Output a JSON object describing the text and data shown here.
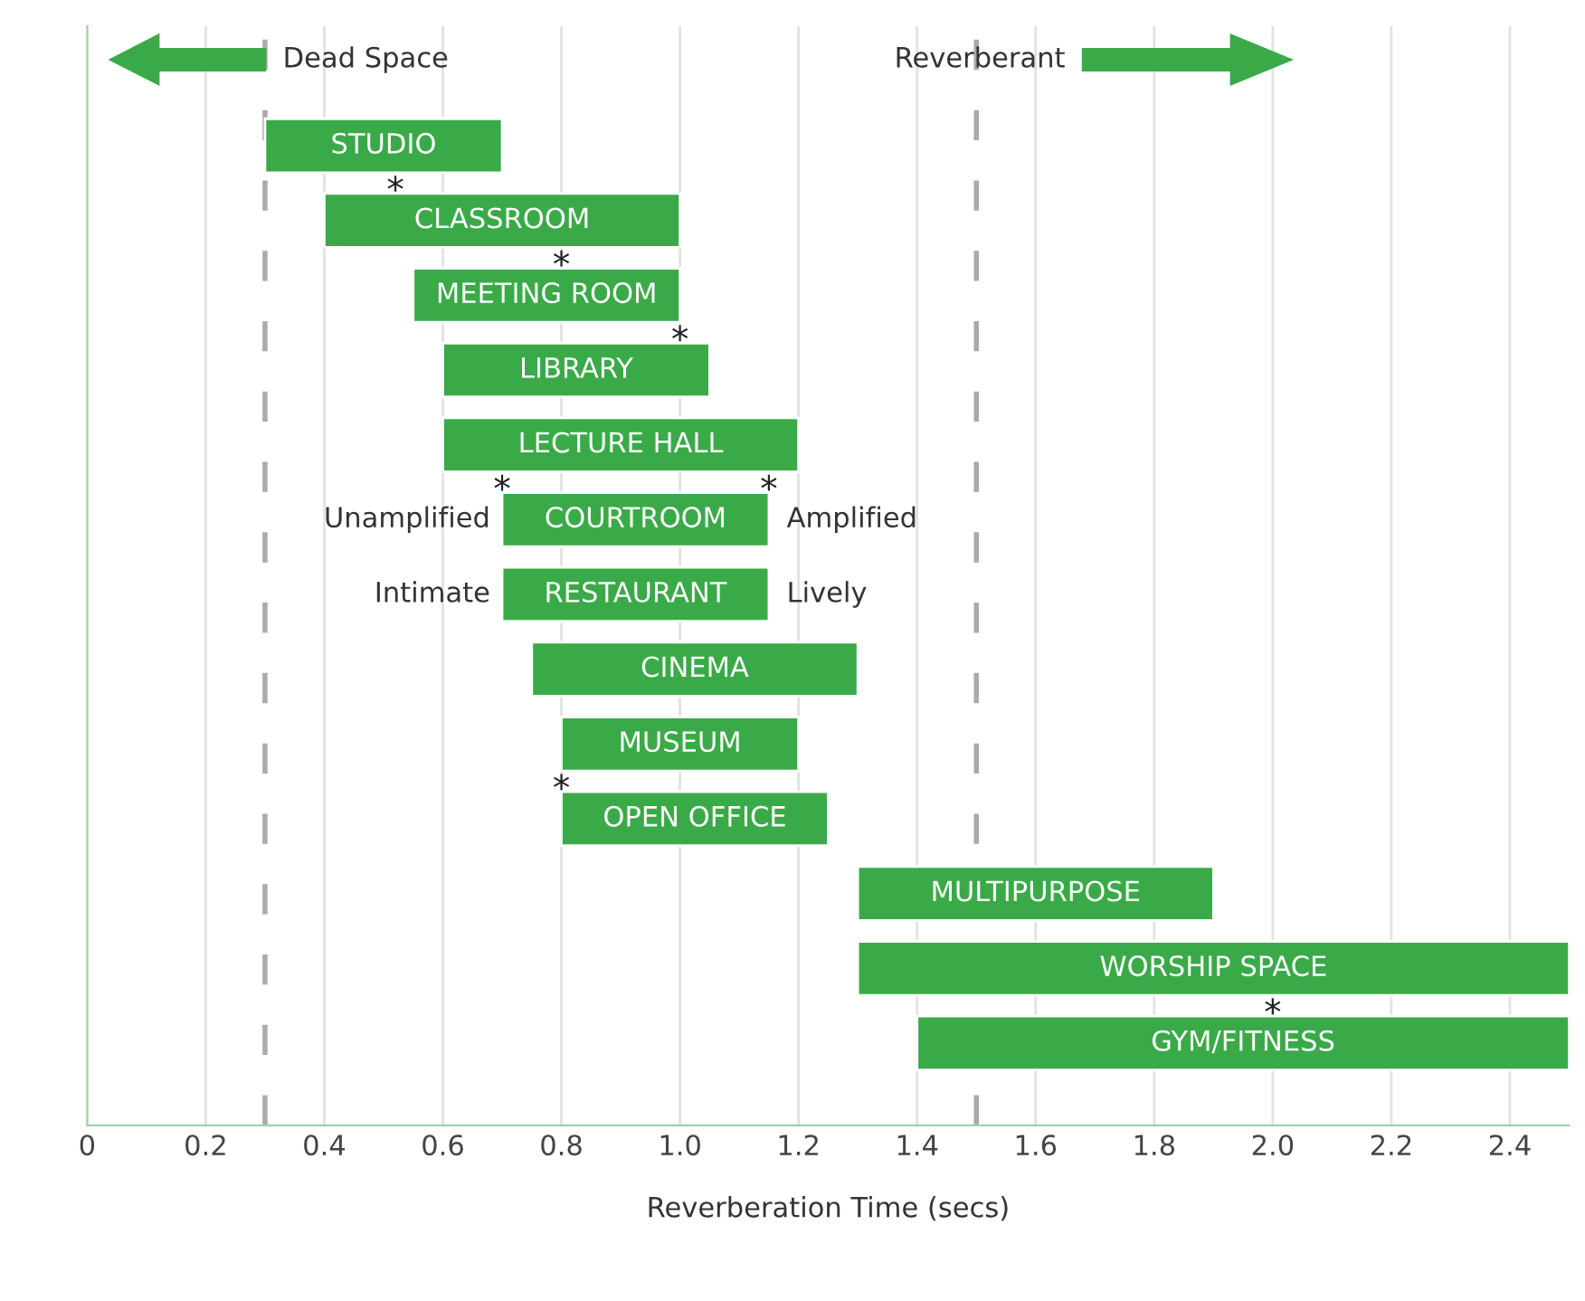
{
  "chart_data": {
    "type": "bar",
    "orientation": "horizontal",
    "xlabel": "Reverberation Time (secs)",
    "categories": [
      "STUDIO",
      "CLASSROOM",
      "MEETING ROOM",
      "LIBRARY",
      "LECTURE HALL",
      "COURTROOM",
      "RESTAURANT",
      "CINEMA",
      "MUSEUM",
      "OPEN OFFICE",
      "MULTIPURPOSE",
      "WORSHIP SPACE",
      "GYM/FITNESS"
    ],
    "base": [
      0.3,
      0.4,
      0.55,
      0.6,
      0.6,
      0.7,
      0.7,
      0.75,
      0.8,
      0.8,
      1.3,
      1.3,
      1.4
    ],
    "values": [
      0.4,
      0.6,
      0.45,
      0.45,
      0.6,
      0.45,
      0.45,
      0.55,
      0.4,
      0.45,
      0.6,
      1.2,
      1.1
    ],
    "color": "#3aaa48",
    "xlim": [
      0,
      2.5
    ],
    "xticks": [
      0,
      0.2,
      0.4,
      0.6,
      0.8,
      {
        "value": 1,
        "label": "1.0"
      },
      1.2,
      1.4,
      1.6,
      1.8,
      {
        "value": 2,
        "label": "2.0"
      },
      2.2,
      2.4
    ],
    "grid": "x",
    "tick_labels": "x",
    "ref_lines": [
      {
        "axis": "x",
        "value": 0.3,
        "color": "#aaaaaa",
        "line_style": "dashed"
      },
      {
        "axis": "x",
        "value": 1.5,
        "color": "#aaaaaa",
        "line_style": "dashed"
      }
    ],
    "annotations": [
      "Dead Space",
      "Reverberant",
      {
        "text": "Unamplified",
        "x": 0.7,
        "y": "COURTROOM"
      },
      {
        "text": "Amplified",
        "x": 1.15,
        "y": "COURTROOM"
      },
      {
        "text": "Intimate",
        "x": 0.7,
        "y": "RESTAURANT"
      },
      {
        "text": "Lively",
        "x": 1.15,
        "y": "RESTAURANT"
      },
      {
        "text": "*",
        "x": 0.52,
        "y": "CLASSROOM"
      },
      {
        "text": "*",
        "x": 0.8,
        "y": "MEETING ROOM"
      },
      {
        "text": "*",
        "x": 1.0,
        "y": "LIBRARY"
      },
      {
        "text": "*",
        "x": 0.7,
        "y": "COURTROOM"
      },
      {
        "text": "*",
        "x": 1.15,
        "y": "COURTROOM"
      },
      {
        "text": "*",
        "x": 0.8,
        "y": "OPEN OFFICE"
      },
      {
        "text": "*",
        "x": 2.0,
        "y": "GYM/FITNESS"
      }
    ]
  }
}
